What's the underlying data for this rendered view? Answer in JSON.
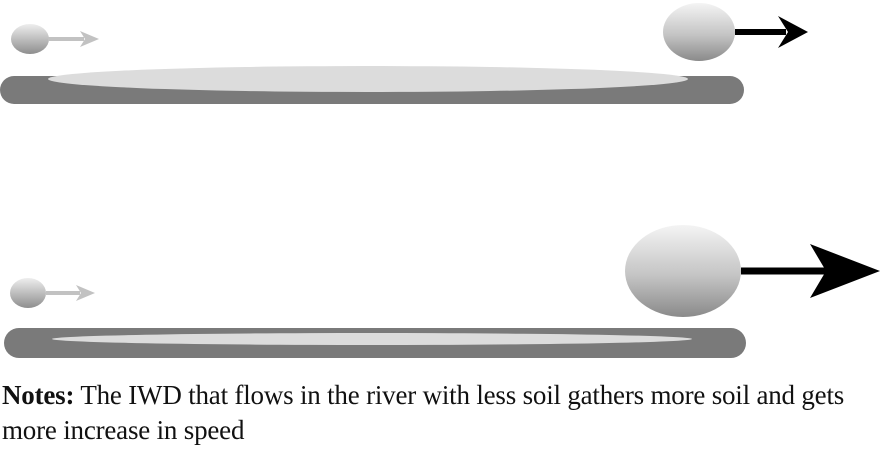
{
  "figure": {
    "notes_label": "Notes:",
    "notes_text": "The IWD that flows in the river with less soil gathers more soil and gets more increase in speed"
  },
  "colors": {
    "riverbed": "#7a7a7a",
    "soil_layer": "#dcdcdc",
    "drop_light": "#f2f2f2",
    "drop_dark": "#8c8c8c",
    "arrow_light": "#bdbdbd",
    "arrow_dark": "#000000"
  },
  "icons": {
    "small_drop": "water-drop-icon",
    "large_drop": "water-drop-icon",
    "speed_arrow": "arrow-right-icon"
  }
}
